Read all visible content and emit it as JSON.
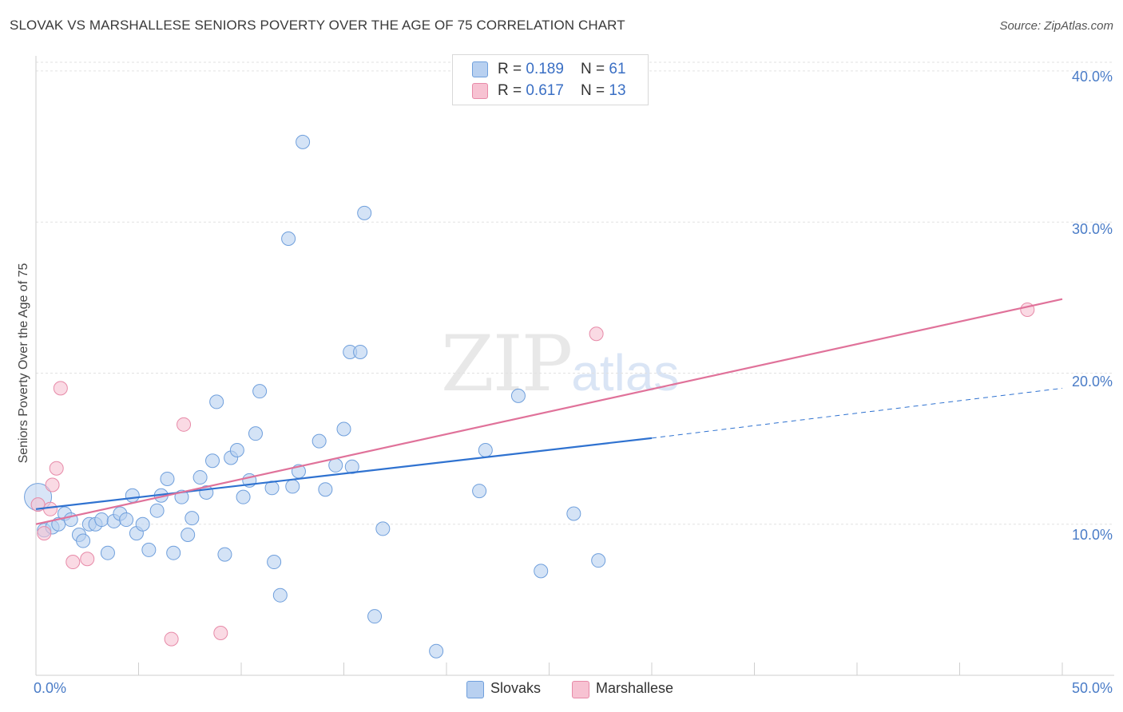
{
  "title": "SLOVAK VS MARSHALLESE SENIORS POVERTY OVER THE AGE OF 75 CORRELATION CHART",
  "source": "Source: ZipAtlas.com",
  "watermark": {
    "zip": "ZIP",
    "atlas": "atlas"
  },
  "colors": {
    "blue": "#6f9fdc",
    "blue_fill": "#b8d0f0",
    "pink": "#e78aa8",
    "pink_fill": "#f7c2d2",
    "blue_line": "#2f72d0",
    "pink_line": "#e0729a"
  },
  "legend_top": [
    {
      "r_label": "R = ",
      "r": "0.189",
      "n_label": "N = ",
      "n": "61"
    },
    {
      "r_label": "R = ",
      "r": "0.617",
      "n_label": "N = ",
      "n": "13"
    }
  ],
  "legend_bottom": {
    "blue": "Slovaks",
    "pink": "Marshallese"
  },
  "chart_data": {
    "type": "scatter",
    "title": "SLOVAK VS MARSHALLESE SENIORS POVERTY OVER THE AGE OF 75 CORRELATION CHART",
    "xlabel": "",
    "ylabel": "Seniors Poverty Over the Age of 75",
    "xlim": [
      0,
      50
    ],
    "ylim": [
      0,
      41
    ],
    "x_tick_labels": [
      "0.0%",
      "50.0%"
    ],
    "y_ticks": [
      10,
      20,
      30,
      40
    ],
    "y_tick_labels": [
      "10.0%",
      "20.0%",
      "30.0%",
      "40.0%"
    ],
    "series": [
      {
        "name": "Slovaks",
        "r": 0.189,
        "n": 61,
        "trend": {
          "x0": 0,
          "y0": 11.0,
          "x1": 30,
          "y1": 15.7,
          "dash_x1": 50,
          "dash_y1": 19.0
        },
        "points": [
          [
            0.1,
            11.8
          ],
          [
            0.4,
            9.6
          ],
          [
            0.8,
            9.8
          ],
          [
            1.1,
            10.0
          ],
          [
            1.4,
            10.7
          ],
          [
            1.7,
            10.3
          ],
          [
            2.1,
            9.3
          ],
          [
            2.3,
            8.9
          ],
          [
            2.6,
            10.0
          ],
          [
            2.9,
            10.0
          ],
          [
            3.2,
            10.3
          ],
          [
            3.5,
            8.1
          ],
          [
            3.8,
            10.2
          ],
          [
            4.1,
            10.7
          ],
          [
            4.4,
            10.3
          ],
          [
            4.7,
            11.9
          ],
          [
            4.9,
            9.4
          ],
          [
            5.2,
            10.0
          ],
          [
            5.5,
            8.3
          ],
          [
            5.9,
            10.9
          ],
          [
            6.1,
            11.9
          ],
          [
            6.4,
            13.0
          ],
          [
            6.7,
            8.1
          ],
          [
            7.1,
            11.8
          ],
          [
            7.4,
            9.3
          ],
          [
            7.6,
            10.4
          ],
          [
            8.0,
            13.1
          ],
          [
            8.3,
            12.1
          ],
          [
            8.6,
            14.2
          ],
          [
            8.8,
            18.1
          ],
          [
            9.2,
            8.0
          ],
          [
            9.5,
            14.4
          ],
          [
            9.8,
            14.9
          ],
          [
            10.1,
            11.8
          ],
          [
            10.4,
            12.9
          ],
          [
            10.7,
            16.0
          ],
          [
            10.9,
            18.8
          ],
          [
            11.5,
            12.4
          ],
          [
            11.6,
            7.5
          ],
          [
            11.9,
            5.3
          ],
          [
            12.3,
            28.9
          ],
          [
            12.5,
            12.5
          ],
          [
            12.8,
            13.5
          ],
          [
            13.0,
            35.3
          ],
          [
            13.8,
            15.5
          ],
          [
            14.1,
            12.3
          ],
          [
            14.6,
            13.9
          ],
          [
            15.0,
            16.3
          ],
          [
            15.3,
            21.4
          ],
          [
            15.4,
            13.8
          ],
          [
            15.8,
            21.4
          ],
          [
            16.0,
            30.6
          ],
          [
            16.5,
            3.9
          ],
          [
            16.9,
            9.7
          ],
          [
            19.5,
            1.6
          ],
          [
            21.6,
            12.2
          ],
          [
            21.9,
            14.9
          ],
          [
            23.5,
            18.5
          ],
          [
            24.6,
            6.9
          ],
          [
            26.2,
            10.7
          ],
          [
            27.4,
            7.6
          ]
        ]
      },
      {
        "name": "Marshallese",
        "r": 0.617,
        "n": 13,
        "trend": {
          "x0": 0,
          "y0": 10.0,
          "x1": 50,
          "y1": 24.9
        },
        "points": [
          [
            0.1,
            11.3
          ],
          [
            0.4,
            9.4
          ],
          [
            0.7,
            11.0
          ],
          [
            0.8,
            12.6
          ],
          [
            1.0,
            13.7
          ],
          [
            1.2,
            19.0
          ],
          [
            1.8,
            7.5
          ],
          [
            2.5,
            7.7
          ],
          [
            6.6,
            2.4
          ],
          [
            7.2,
            16.6
          ],
          [
            9.0,
            2.8
          ],
          [
            27.3,
            22.6
          ],
          [
            48.3,
            24.2
          ]
        ]
      }
    ]
  }
}
